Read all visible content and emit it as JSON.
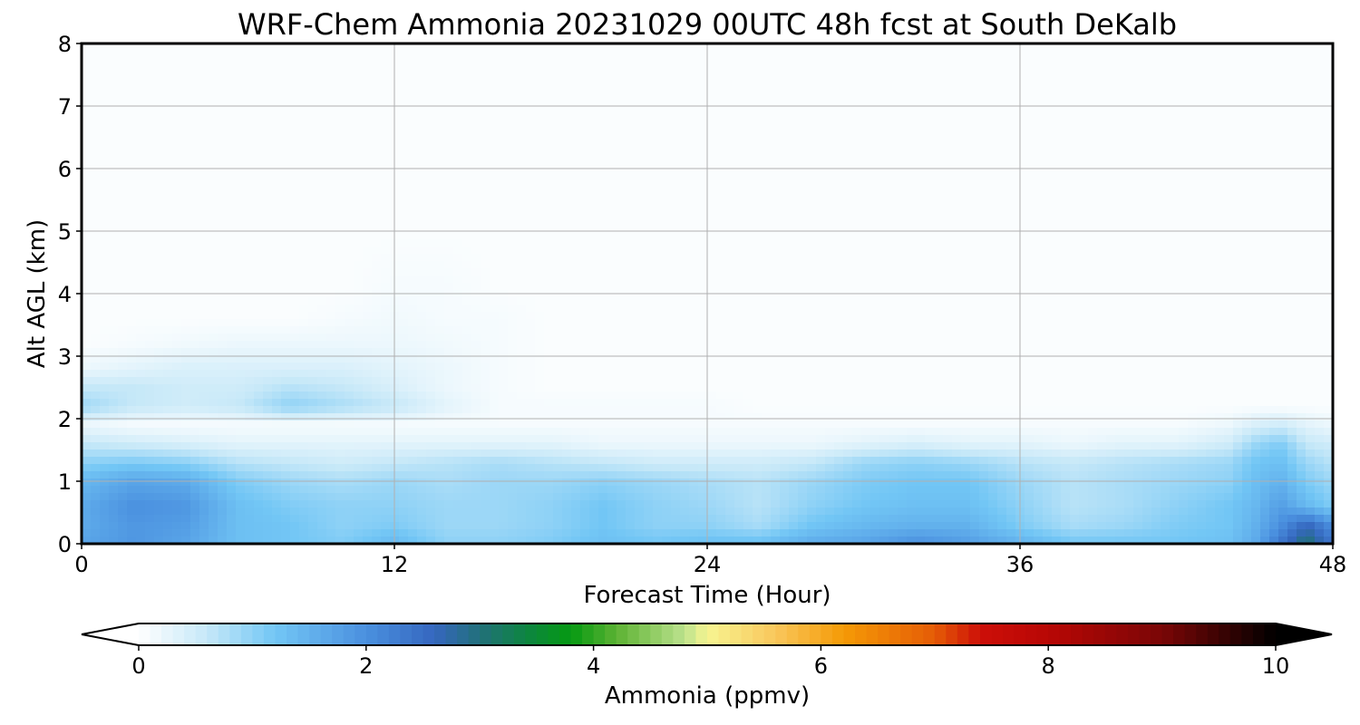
{
  "chart_data": {
    "type": "heatmap",
    "title": "WRF-Chem Ammonia  20231029 00UTC 48h fcst at South DeKalb",
    "xlabel": "Forecast Time (Hour)",
    "ylabel": "Alt AGL (km)",
    "xlim": [
      0,
      48
    ],
    "ylim": [
      0,
      8
    ],
    "x_ticks": [
      0,
      12,
      24,
      36,
      48
    ],
    "y_ticks": [
      0,
      1,
      2,
      3,
      4,
      5,
      6,
      7,
      8
    ],
    "grid": true,
    "x_hours": [
      0,
      2,
      4,
      6,
      8,
      10,
      12,
      14,
      16,
      18,
      20,
      22,
      24,
      26,
      28,
      30,
      32,
      34,
      36,
      38,
      40,
      42,
      44,
      45,
      46,
      47,
      48
    ],
    "z_km": [
      0,
      0.3,
      0.6,
      1.0,
      1.3,
      1.6,
      1.9,
      2.2,
      2.5,
      2.8,
      3.2,
      3.6,
      4.1,
      5.0,
      8.0
    ],
    "ammonia_ppmv": [
      [
        1.7,
        1.9,
        1.7,
        1.3,
        1.2,
        1.1,
        1.4,
        1.0,
        1.0,
        1.1,
        1.3,
        1.2,
        1.3,
        1.3,
        1.6,
        1.7,
        2.0,
        1.8,
        1.5,
        1.2,
        1.2,
        1.2,
        1.3,
        1.6,
        2.4,
        3.1,
        2.4
      ],
      [
        1.6,
        1.9,
        1.8,
        1.3,
        1.2,
        1.0,
        1.1,
        0.9,
        0.9,
        1.0,
        1.2,
        1.0,
        1.0,
        0.8,
        1.2,
        1.4,
        1.5,
        1.5,
        1.1,
        0.8,
        0.9,
        1.1,
        1.2,
        1.5,
        2.0,
        2.6,
        2.0
      ],
      [
        1.6,
        2.0,
        1.9,
        1.3,
        1.1,
        1.0,
        1.0,
        0.9,
        0.9,
        1.0,
        1.2,
        1.0,
        0.9,
        0.7,
        1.0,
        1.2,
        1.3,
        1.3,
        1.0,
        0.7,
        0.8,
        1.0,
        1.2,
        1.4,
        1.8,
        1.4,
        1.1
      ],
      [
        1.4,
        1.7,
        1.6,
        1.1,
        0.9,
        0.8,
        0.9,
        0.8,
        0.9,
        0.9,
        1.0,
        0.9,
        0.8,
        0.7,
        0.9,
        1.1,
        1.2,
        1.2,
        0.9,
        0.7,
        0.8,
        0.9,
        1.0,
        1.3,
        1.5,
        1.1,
        0.9
      ],
      [
        1.0,
        1.1,
        1.0,
        0.7,
        0.6,
        0.5,
        0.6,
        0.7,
        0.8,
        0.7,
        0.6,
        0.5,
        0.5,
        0.5,
        0.6,
        0.9,
        1.0,
        0.9,
        0.7,
        0.6,
        0.7,
        0.8,
        0.9,
        1.2,
        1.3,
        0.9,
        0.7
      ],
      [
        0.6,
        0.5,
        0.4,
        0.3,
        0.3,
        0.3,
        0.3,
        0.3,
        0.3,
        0.3,
        0.2,
        0.2,
        0.2,
        0.2,
        0.2,
        0.3,
        0.4,
        0.3,
        0.3,
        0.2,
        0.3,
        0.3,
        0.5,
        0.9,
        1.1,
        0.6,
        0.5
      ],
      [
        0.2,
        0.1,
        0.1,
        0.1,
        0.1,
        0.1,
        0.1,
        0.1,
        0.1,
        0.1,
        0.1,
        0.1,
        0.1,
        0.1,
        0.1,
        0.1,
        0.1,
        0.1,
        0.1,
        0.1,
        0.1,
        0.1,
        0.2,
        0.4,
        0.5,
        0.3,
        0.2
      ],
      [
        0.9,
        0.6,
        0.5,
        0.6,
        1.0,
        0.8,
        0.6,
        0.3,
        0.1,
        0.1,
        0.1,
        0.1,
        0.1,
        0.05,
        0.05,
        0.05,
        0.05,
        0.05,
        0.05,
        0.05,
        0.05,
        0.05,
        0.05,
        0.05,
        0.05,
        0.05,
        0.05
      ],
      [
        0.6,
        0.6,
        0.5,
        0.5,
        0.7,
        0.6,
        0.4,
        0.2,
        0.1,
        0.05,
        0.05,
        0.05,
        0.05,
        0.05,
        0.05,
        0.05,
        0.05,
        0.05,
        0.05,
        0.05,
        0.05,
        0.05,
        0.05,
        0.05,
        0.05,
        0.05,
        0.05
      ],
      [
        0.2,
        0.3,
        0.4,
        0.4,
        0.4,
        0.4,
        0.3,
        0.2,
        0.1,
        0.05,
        0.05,
        0.05,
        0.05,
        0.05,
        0.05,
        0.05,
        0.05,
        0.05,
        0.05,
        0.05,
        0.05,
        0.05,
        0.05,
        0.05,
        0.05,
        0.05,
        0.05
      ],
      [
        0.05,
        0.1,
        0.15,
        0.2,
        0.2,
        0.2,
        0.2,
        0.15,
        0.1,
        0.05,
        0.05,
        0.05,
        0.05,
        0.05,
        0.05,
        0.05,
        0.05,
        0.05,
        0.05,
        0.05,
        0.05,
        0.05,
        0.05,
        0.05,
        0.05,
        0.05,
        0.05
      ],
      [
        0.05,
        0.05,
        0.05,
        0.05,
        0.05,
        0.1,
        0.15,
        0.1,
        0.1,
        0.05,
        0.05,
        0.05,
        0.05,
        0.05,
        0.05,
        0.05,
        0.05,
        0.05,
        0.05,
        0.05,
        0.05,
        0.05,
        0.05,
        0.05,
        0.05,
        0.05,
        0.05
      ],
      [
        0.05,
        0.05,
        0.05,
        0.05,
        0.05,
        0.05,
        0.1,
        0.1,
        0.05,
        0.05,
        0.05,
        0.05,
        0.05,
        0.05,
        0.05,
        0.05,
        0.05,
        0.05,
        0.05,
        0.05,
        0.05,
        0.05,
        0.05,
        0.05,
        0.05,
        0.05,
        0.05
      ],
      [
        0.05,
        0.05,
        0.05,
        0.05,
        0.05,
        0.05,
        0.05,
        0.05,
        0.05,
        0.05,
        0.05,
        0.05,
        0.05,
        0.05,
        0.05,
        0.05,
        0.05,
        0.05,
        0.05,
        0.05,
        0.05,
        0.05,
        0.05,
        0.05,
        0.05,
        0.05,
        0.05
      ],
      [
        0.05,
        0.05,
        0.05,
        0.05,
        0.05,
        0.05,
        0.05,
        0.05,
        0.05,
        0.05,
        0.05,
        0.05,
        0.05,
        0.05,
        0.05,
        0.05,
        0.05,
        0.05,
        0.05,
        0.05,
        0.05,
        0.05,
        0.05,
        0.05,
        0.05,
        0.05,
        0.05
      ]
    ],
    "colorbar": {
      "label": "Ammonia  (ppmv)",
      "min": 0,
      "max": 10,
      "ticks": [
        0,
        2,
        4,
        6,
        8,
        10
      ],
      "extend": "both",
      "stops": [
        {
          "v": 0.0,
          "c": "#ffffff"
        },
        {
          "v": 0.6,
          "c": "#c6e8f8"
        },
        {
          "v": 1.2,
          "c": "#72c6f5"
        },
        {
          "v": 2.0,
          "c": "#4a90df"
        },
        {
          "v": 2.6,
          "c": "#3567bf"
        },
        {
          "v": 3.0,
          "c": "#22707a"
        },
        {
          "v": 3.4,
          "c": "#0d8442"
        },
        {
          "v": 3.8,
          "c": "#059a12"
        },
        {
          "v": 4.2,
          "c": "#5cb233"
        },
        {
          "v": 4.8,
          "c": "#bce28d"
        },
        {
          "v": 5.0,
          "c": "#f7f591"
        },
        {
          "v": 5.6,
          "c": "#f9c75c"
        },
        {
          "v": 6.2,
          "c": "#f59a06"
        },
        {
          "v": 7.0,
          "c": "#e55c06"
        },
        {
          "v": 7.4,
          "c": "#cd0f08"
        },
        {
          "v": 8.0,
          "c": "#b80705"
        },
        {
          "v": 9.0,
          "c": "#7a0606"
        },
        {
          "v": 10.0,
          "c": "#000000"
        }
      ]
    }
  }
}
